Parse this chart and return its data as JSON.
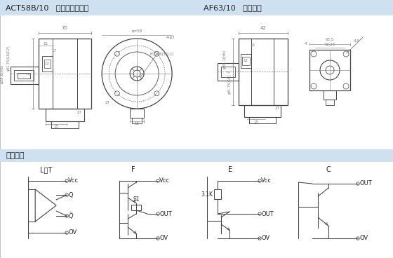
{
  "title_left": "ACT58B/10   电缆航插侧出型",
  "title_right": "AF63/10   电缆连接",
  "section_label": "输出电路",
  "label_LT": "L、T",
  "label_F": "F",
  "label_E": "E",
  "label_C": "C",
  "label_Vcc": "Vcc",
  "label_Q": "Q",
  "label_Qbar": "$\\\\bar{Q}$",
  "label_OUT": "OUT",
  "label_OV": "OV",
  "label_S1": "S1",
  "label_3K": "3.1K",
  "bg_color": "#ffffff",
  "header_bg": "#cfe0f0",
  "section_bg": "#cfe0f0",
  "line_color": "#444444",
  "dim_color": "#777777",
  "text_color": "#222222",
  "circ_color": "#444444"
}
